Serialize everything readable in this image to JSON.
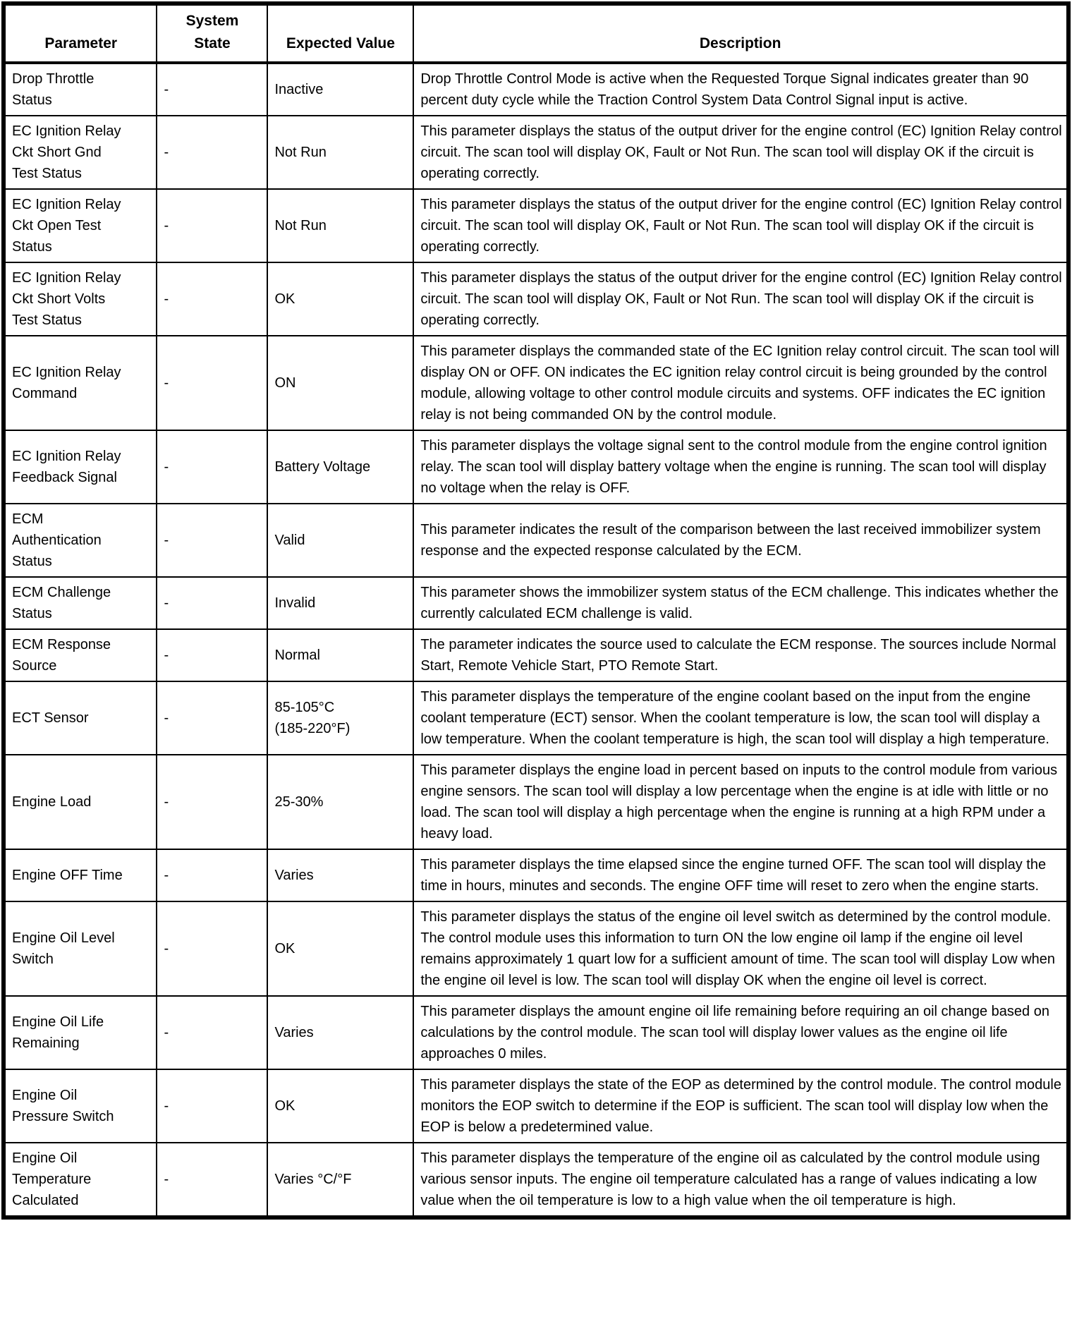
{
  "table": {
    "columns": {
      "parameter": "Parameter",
      "system_state": "System\nState",
      "expected_value": "Expected Value",
      "description": "Description"
    },
    "rows": [
      {
        "parameter": "Drop Throttle\nStatus",
        "system_state": "-",
        "expected_value": "Inactive",
        "description": "Drop Throttle Control Mode is active when the Requested Torque Signal indicates greater than 90 percent duty cycle while the Traction Control System Data Control Signal input is active."
      },
      {
        "parameter": "EC Ignition Relay\nCkt Short Gnd\nTest Status",
        "system_state": "-",
        "expected_value": "Not Run",
        "description": "This parameter displays the status of the output driver for the engine control (EC) Ignition Relay control circuit. The scan tool will display OK, Fault or Not Run. The scan tool will display OK if the circuit is operating correctly."
      },
      {
        "parameter": "EC Ignition Relay\nCkt Open Test\nStatus",
        "system_state": "-",
        "expected_value": "Not Run",
        "description": "This parameter displays the status of the output driver for the engine control (EC) Ignition Relay control circuit. The scan tool will display OK, Fault or Not Run. The scan tool will display OK if the circuit is operating correctly."
      },
      {
        "parameter": "EC Ignition Relay\nCkt Short Volts\nTest Status",
        "system_state": "-",
        "expected_value": "OK",
        "description": "This parameter displays the status of the output driver for the engine control (EC) Ignition Relay control circuit. The scan tool will display OK, Fault or Not Run. The scan tool will display OK if the circuit is operating correctly."
      },
      {
        "parameter": "EC Ignition Relay\nCommand",
        "system_state": "-",
        "expected_value": "ON",
        "description": "This parameter displays the commanded state of the EC Ignition relay control circuit. The scan tool will display ON or OFF. ON indicates the EC ignition relay control circuit is being grounded by the control module, allowing voltage to other control module circuits and systems. OFF indicates the EC ignition relay is not being commanded ON by the control module."
      },
      {
        "parameter": "EC Ignition Relay\nFeedback Signal",
        "system_state": "-",
        "expected_value": "Battery Voltage",
        "description": "This parameter displays the voltage signal sent to the control module from the engine control ignition relay. The scan tool will display battery voltage when the engine is running. The scan tool will display no voltage when the relay is OFF."
      },
      {
        "parameter": "ECM\nAuthentication\nStatus",
        "system_state": "-",
        "expected_value": "Valid",
        "description": "This parameter indicates the result of the comparison between the last received immobilizer system response and the expected response calculated by the ECM."
      },
      {
        "parameter": "ECM Challenge\nStatus",
        "system_state": "-",
        "expected_value": "Invalid",
        "description": "This parameter shows the immobilizer system status of the ECM challenge. This indicates whether the currently calculated ECM challenge is valid."
      },
      {
        "parameter": "ECM Response\nSource",
        "system_state": "-",
        "expected_value": "Normal",
        "description": "The parameter indicates the source used to calculate the ECM response. The sources include Normal Start, Remote Vehicle Start, PTO Remote Start."
      },
      {
        "parameter": "ECT Sensor",
        "system_state": "-",
        "expected_value": "85-105°C\n(185-220°F)",
        "description": "This parameter displays the temperature of the engine coolant based on the input from the engine coolant temperature (ECT) sensor. When the coolant temperature is low, the scan tool will display a low temperature. When the coolant temperature is high, the scan tool will display a high temperature."
      },
      {
        "parameter": "Engine Load",
        "system_state": "-",
        "expected_value": "25-30%",
        "description": "This parameter displays the engine load in percent based on inputs to the control module from various engine sensors. The scan tool will display a low percentage when the engine is at idle with little or no load. The scan tool will display a high percentage when the engine is running at a high RPM under a heavy load."
      },
      {
        "parameter": "Engine OFF Time",
        "system_state": "-",
        "expected_value": "Varies",
        "description": "This parameter displays the time elapsed since the engine turned OFF. The scan tool will display the time in hours, minutes and seconds. The engine OFF time will reset to zero when the engine starts."
      },
      {
        "parameter": "Engine Oil Level\nSwitch",
        "system_state": "-",
        "expected_value": "OK",
        "description": "This parameter displays the status of the engine oil level switch as determined by the control module. The control module uses this information to turn ON the low engine oil lamp if the engine oil level remains approximately 1 quart low for a sufficient amount of time. The scan tool will display Low when the engine oil level is low. The scan tool will display OK when the engine oil level is correct."
      },
      {
        "parameter": "Engine Oil Life\nRemaining",
        "system_state": "-",
        "expected_value": "Varies",
        "description": "This parameter displays the amount engine oil life remaining before requiring an oil change based on calculations by the control module. The scan tool will display lower values as the engine oil life approaches 0 miles."
      },
      {
        "parameter": "Engine Oil\nPressure Switch",
        "system_state": "-",
        "expected_value": "OK",
        "description": "This parameter displays the state of the EOP as determined by the control module. The control module monitors the EOP switch to determine if the EOP is sufficient. The scan tool will display low when the EOP is below a predetermined value."
      },
      {
        "parameter": "Engine Oil\nTemperature\nCalculated",
        "system_state": "-",
        "expected_value": "Varies °C/°F",
        "description": "This parameter displays the temperature of the engine oil as calculated by the control module using various sensor inputs. The engine oil temperature calculated has a range of values indicating a low value when the oil temperature is low to a high value when the oil temperature is high."
      }
    ]
  }
}
